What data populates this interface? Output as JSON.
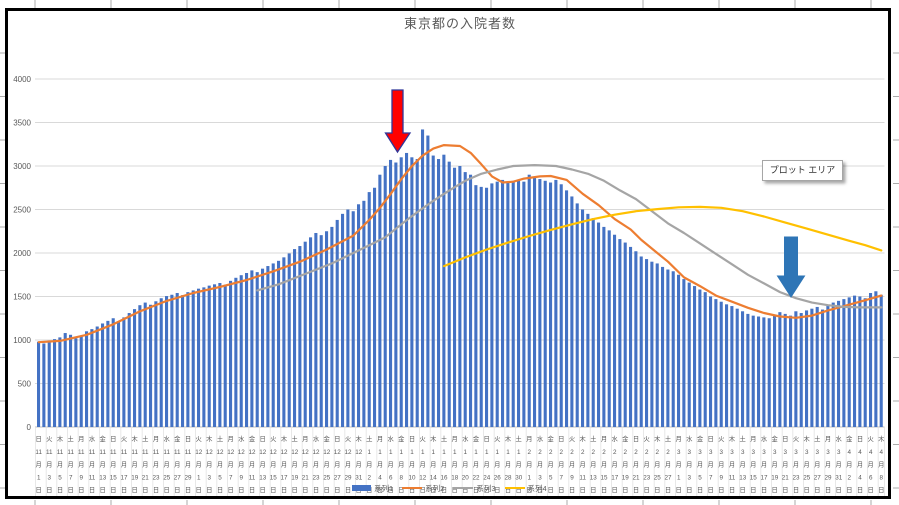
{
  "chart_ui": {
    "plot_area_tooltip": "プロット エリア"
  },
  "annotations": {
    "red_arrow": {
      "shape": "down-block-arrow",
      "fill": "#ff0000",
      "outline": "#2f3699",
      "marks": "2021-01-08 area"
    },
    "blue_arrow": {
      "shape": "down-block-arrow",
      "fill": "#2e75b6",
      "outline": "#2e75b6",
      "marks": "2021-03-22 area"
    }
  },
  "chart_data": {
    "type": "bar",
    "title": "東京都の入院者数",
    "xlabel": "",
    "ylabel": "",
    "ylim": [
      0,
      4000
    ],
    "y_ticks": [
      0,
      500,
      1000,
      1500,
      2000,
      2500,
      3000,
      3500,
      4000
    ],
    "grid": true,
    "legend_position": "bottom",
    "x_tick_step_days": 2,
    "month_suffix": "月",
    "day_suffix": "日",
    "x_ticks": [
      "日|11|1",
      "火|11|3",
      "木|11|5",
      "土|11|7",
      "月|11|9",
      "水|11|11",
      "金|11|13",
      "日|11|15",
      "火|11|17",
      "木|11|19",
      "土|11|21",
      "月|11|23",
      "水|11|25",
      "金|11|27",
      "日|11|29",
      "火|12|1",
      "木|12|3",
      "土|12|5",
      "月|12|7",
      "水|12|9",
      "金|12|11",
      "日|12|13",
      "火|12|15",
      "木|12|17",
      "土|12|19",
      "月|12|21",
      "水|12|23",
      "金|12|25",
      "日|12|27",
      "火|12|29",
      "木|12|31",
      "土|1|2",
      "月|1|4",
      "水|1|6",
      "金|1|8",
      "日|1|10",
      "火|1|12",
      "木|1|14",
      "土|1|16",
      "月|1|18",
      "水|1|20",
      "金|1|22",
      "日|1|24",
      "火|1|26",
      "木|1|28",
      "土|1|30",
      "月|2|1",
      "水|2|3",
      "金|2|5",
      "日|2|7",
      "火|2|9",
      "木|2|11",
      "土|2|13",
      "月|2|15",
      "水|2|17",
      "金|2|19",
      "日|2|21",
      "火|2|23",
      "木|2|25",
      "土|2|27",
      "月|3|1",
      "水|3|3",
      "金|3|5",
      "日|3|7",
      "火|3|9",
      "木|3|11",
      "土|3|13",
      "月|3|15",
      "水|3|17",
      "金|3|19",
      "日|3|21",
      "火|3|23",
      "木|3|25",
      "土|3|27",
      "月|3|29",
      "水|3|31",
      "金|4|2",
      "日|4|4",
      "火|4|6",
      "木|4|8"
    ],
    "series": [
      {
        "name": "系列1",
        "type": "column",
        "color": "#4472C4",
        "values": [
          980,
          960,
          995,
          1010,
          1030,
          1080,
          1060,
          1020,
          1045,
          1100,
          1125,
          1155,
          1190,
          1220,
          1250,
          1215,
          1260,
          1310,
          1355,
          1400,
          1430,
          1405,
          1445,
          1480,
          1505,
          1520,
          1540,
          1515,
          1550,
          1570,
          1590,
          1605,
          1625,
          1640,
          1655,
          1635,
          1680,
          1715,
          1745,
          1770,
          1800,
          1780,
          1820,
          1850,
          1880,
          1910,
          1950,
          1995,
          2045,
          2080,
          2130,
          2180,
          2230,
          2205,
          2250,
          2300,
          2380,
          2450,
          2500,
          2480,
          2560,
          2600,
          2700,
          2750,
          2900,
          3000,
          3070,
          3040,
          3100,
          3150,
          3100,
          3080,
          3420,
          3350,
          3120,
          3080,
          3130,
          3050,
          2980,
          3000,
          2930,
          2900,
          2780,
          2760,
          2750,
          2800,
          2820,
          2840,
          2810,
          2830,
          2840,
          2820,
          2900,
          2870,
          2850,
          2830,
          2810,
          2840,
          2790,
          2720,
          2650,
          2570,
          2500,
          2450,
          2400,
          2350,
          2300,
          2260,
          2210,
          2160,
          2120,
          2070,
          2020,
          1960,
          1930,
          1900,
          1880,
          1840,
          1810,
          1790,
          1750,
          1700,
          1660,
          1620,
          1580,
          1550,
          1500,
          1470,
          1440,
          1410,
          1390,
          1360,
          1330,
          1300,
          1280,
          1270,
          1260,
          1250,
          1280,
          1320,
          1300,
          1280,
          1330,
          1310,
          1340,
          1360,
          1380,
          1350,
          1400,
          1430,
          1450,
          1470,
          1490,
          1510,
          1500,
          1480,
          1540,
          1560,
          1520
        ]
      },
      {
        "name": "系列2",
        "type": "line",
        "color": "#ED7D31",
        "points": [
          [
            0,
            975
          ],
          [
            4,
            990
          ],
          [
            9,
            1060
          ],
          [
            14,
            1180
          ],
          [
            19,
            1330
          ],
          [
            24,
            1450
          ],
          [
            29,
            1540
          ],
          [
            34,
            1610
          ],
          [
            39,
            1690
          ],
          [
            44,
            1790
          ],
          [
            49,
            1900
          ],
          [
            54,
            2040
          ],
          [
            59,
            2200
          ],
          [
            62,
            2380
          ],
          [
            64,
            2520
          ],
          [
            66,
            2680
          ],
          [
            68,
            2850
          ],
          [
            70,
            3000
          ],
          [
            72,
            3120
          ],
          [
            74,
            3200
          ],
          [
            76,
            3240
          ],
          [
            79,
            3230
          ],
          [
            81,
            3150
          ],
          [
            83,
            3020
          ],
          [
            85,
            2880
          ],
          [
            87,
            2810
          ],
          [
            89,
            2820
          ],
          [
            91,
            2855
          ],
          [
            94,
            2880
          ],
          [
            96,
            2885
          ],
          [
            99,
            2840
          ],
          [
            102,
            2680
          ],
          [
            105,
            2550
          ],
          [
            108,
            2390
          ],
          [
            111,
            2270
          ],
          [
            113,
            2150
          ],
          [
            116,
            2000
          ],
          [
            118,
            1900
          ],
          [
            121,
            1720
          ],
          [
            124,
            1620
          ],
          [
            127,
            1510
          ],
          [
            130,
            1440
          ],
          [
            133,
            1370
          ],
          [
            136,
            1310
          ],
          [
            139,
            1270
          ],
          [
            142,
            1255
          ],
          [
            145,
            1280
          ],
          [
            148,
            1340
          ],
          [
            151,
            1390
          ],
          [
            154,
            1440
          ],
          [
            156,
            1475
          ],
          [
            158,
            1510
          ]
        ]
      },
      {
        "name": "系列3",
        "type": "line",
        "color": "#A5A5A5",
        "points": [
          [
            41,
            1570
          ],
          [
            45,
            1640
          ],
          [
            50,
            1760
          ],
          [
            55,
            1880
          ],
          [
            59,
            2000
          ],
          [
            62,
            2090
          ],
          [
            65,
            2180
          ],
          [
            68,
            2330
          ],
          [
            71,
            2470
          ],
          [
            74,
            2600
          ],
          [
            77,
            2720
          ],
          [
            80,
            2830
          ],
          [
            83,
            2910
          ],
          [
            86,
            2960
          ],
          [
            89,
            3000
          ],
          [
            93,
            3010
          ],
          [
            97,
            3000
          ],
          [
            100,
            2960
          ],
          [
            103,
            2910
          ],
          [
            106,
            2830
          ],
          [
            109,
            2720
          ],
          [
            112,
            2620
          ],
          [
            115,
            2480
          ],
          [
            118,
            2340
          ],
          [
            121,
            2230
          ],
          [
            124,
            2110
          ],
          [
            127,
            1990
          ],
          [
            130,
            1870
          ],
          [
            133,
            1750
          ],
          [
            136,
            1650
          ],
          [
            139,
            1550
          ],
          [
            142,
            1480
          ],
          [
            145,
            1430
          ],
          [
            148,
            1400
          ],
          [
            151,
            1380
          ],
          [
            154,
            1375
          ],
          [
            158,
            1375
          ]
        ]
      },
      {
        "name": "系列4",
        "type": "line",
        "color": "#FFC000",
        "points": [
          [
            76,
            1850
          ],
          [
            80,
            1950
          ],
          [
            84,
            2040
          ],
          [
            88,
            2120
          ],
          [
            92,
            2195
          ],
          [
            96,
            2265
          ],
          [
            100,
            2330
          ],
          [
            104,
            2390
          ],
          [
            108,
            2440
          ],
          [
            112,
            2480
          ],
          [
            116,
            2505
          ],
          [
            120,
            2525
          ],
          [
            124,
            2530
          ],
          [
            128,
            2520
          ],
          [
            132,
            2480
          ],
          [
            136,
            2420
          ],
          [
            140,
            2350
          ],
          [
            144,
            2280
          ],
          [
            148,
            2210
          ],
          [
            152,
            2140
          ],
          [
            155,
            2090
          ],
          [
            158,
            2030
          ]
        ]
      }
    ]
  }
}
